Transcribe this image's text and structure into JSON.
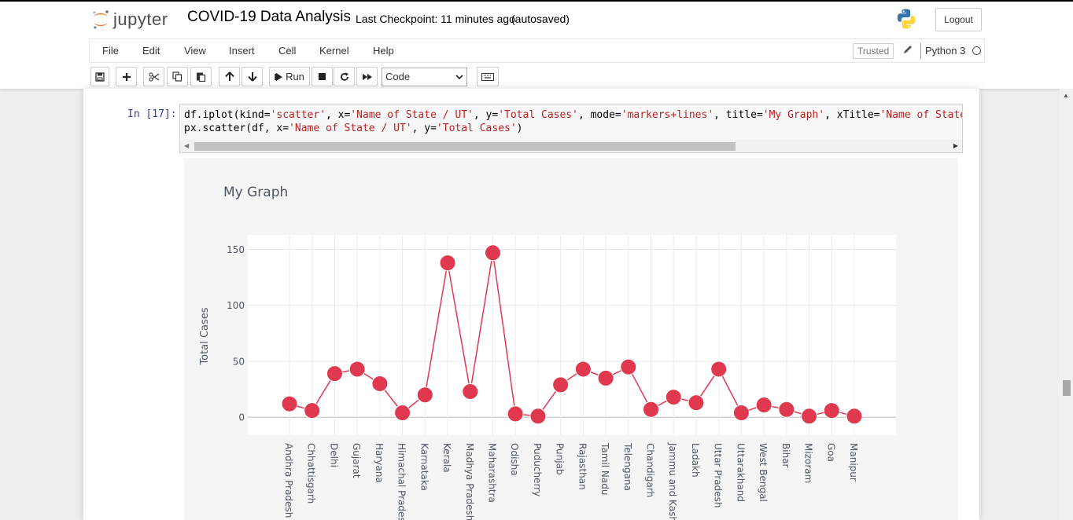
{
  "header": {
    "logo_text": "jupyter",
    "notebook_title": "COVID-19 Data Analysis",
    "checkpoint": "Last Checkpoint: 11 minutes ago",
    "autosave_status": "(autosaved)",
    "logout_label": "Logout"
  },
  "menu": {
    "items": [
      "File",
      "Edit",
      "View",
      "Insert",
      "Cell",
      "Kernel",
      "Help"
    ],
    "trusted_label": "Trusted",
    "kernel_name": "Python 3"
  },
  "toolbar": {
    "run_label": "Run",
    "cell_type": "Code"
  },
  "cell": {
    "prompt": "In [17]:",
    "code_line1": {
      "parts": [
        {
          "t": "df.iplot(kind=",
          "s": false
        },
        {
          "t": "'scatter'",
          "s": true
        },
        {
          "t": ", x=",
          "s": false
        },
        {
          "t": "'Name of State / UT'",
          "s": true
        },
        {
          "t": ", y=",
          "s": false
        },
        {
          "t": "'Total Cases'",
          "s": true
        },
        {
          "t": ", mode=",
          "s": false
        },
        {
          "t": "'markers+lines'",
          "s": true
        },
        {
          "t": ", title=",
          "s": false
        },
        {
          "t": "'My Graph'",
          "s": true
        },
        {
          "t": ", xTitle=",
          "s": false
        },
        {
          "t": "'Name of State / UT'",
          "s": true
        }
      ]
    },
    "code_line2": {
      "parts": [
        {
          "t": "px.scatter(df, x=",
          "s": false
        },
        {
          "t": "'Name of State / UT'",
          "s": true
        },
        {
          "t": ", y=",
          "s": false
        },
        {
          "t": "'Total Cases'",
          "s": true
        },
        {
          "t": ")",
          "s": false
        }
      ]
    }
  },
  "chart_data": {
    "type": "line",
    "title": "My Graph",
    "ylabel": "Total Cases",
    "xlabel": "",
    "ylim": [
      -16,
      163
    ],
    "yticks": [
      0,
      50,
      100,
      150
    ],
    "grid": true,
    "mode": "markers+lines",
    "color": "#e0394f",
    "categories": [
      "Andhra Pradesh",
      "Chhattisgarh",
      "Delhi",
      "Gujarat",
      "Haryana",
      "Himachal Pradesh",
      "Karnataka",
      "Kerala",
      "Madhya Pradesh",
      "Maharashtra",
      "Odisha",
      "Puducherry",
      "Punjab",
      "Rajasthan",
      "Tamil Nadu",
      "Telengana",
      "Chandigarh",
      "Jammu and Kashmir",
      "Ladakh",
      "Uttar Pradesh",
      "Uttarakhand",
      "West Bengal",
      "Bihar",
      "Mizoram",
      "Goa",
      "Manipur"
    ],
    "values": [
      12,
      6,
      39,
      43,
      30,
      4,
      20,
      138,
      23,
      147,
      3,
      1,
      29,
      43,
      35,
      45,
      7,
      18,
      13,
      43,
      4,
      11,
      7,
      1,
      6,
      1
    ]
  },
  "colors": {
    "accent": "#e0394f",
    "prompt": "#303f9f",
    "string": "#ba2121"
  }
}
